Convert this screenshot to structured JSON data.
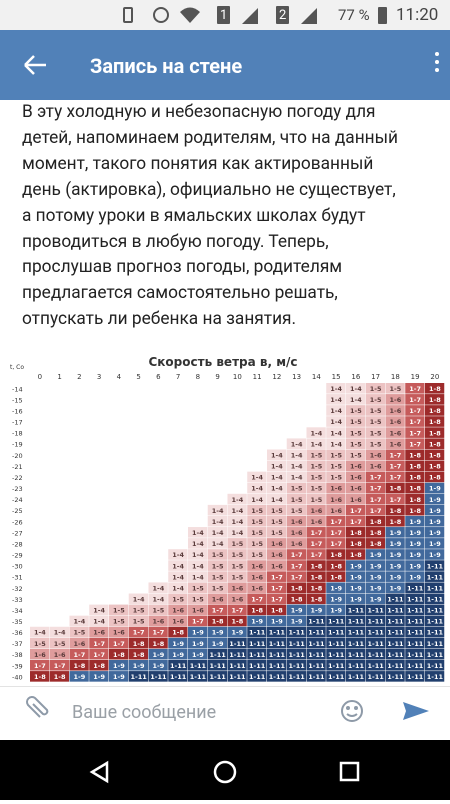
{
  "status_bar": {
    "sim1": "1",
    "sim2": "2",
    "battery": "77 %",
    "time": "11:20"
  },
  "header": {
    "title": "Запись на стене"
  },
  "post": {
    "lines": [
      "В эту холодную и небезопасную погоду для",
      "детей, напоминаем родителям, что на данный",
      "момент, такого понятия как актированный",
      "день (актировка), официально не существует,",
      "а потому уроки в ямальских школах будут",
      "проводиться в любую погоду. Теперь,",
      "прослушав прогноз погоды, родителям",
      "предлагается самостоятельно решать,",
      "отпускать ли ребенка на занятия."
    ]
  },
  "table": {
    "title": "Скорость ветра в, м/с",
    "row_header": "t, Co",
    "columns": [
      0,
      1,
      2,
      3,
      4,
      5,
      6,
      7,
      8,
      9,
      10,
      11,
      12,
      13,
      14,
      15,
      16,
      17,
      18,
      19,
      20
    ],
    "cell_colors": {
      "1-4": "#f4dede",
      "1-5": "#ecc3c3",
      "1-6": "#df9c9c",
      "1-7": "#c65b5b",
      "1-8": "#9d2b2b",
      "1-9": "#41699c",
      "1-11": "#213f6e"
    },
    "dark_text_cells": [
      "1-4",
      "1-5",
      "1-6"
    ],
    "rows": [
      {
        "t": -14,
        "cells": [
          null,
          null,
          null,
          null,
          null,
          null,
          null,
          null,
          null,
          null,
          null,
          null,
          null,
          null,
          null,
          "1-4",
          "1-4",
          "1-5",
          "1-5",
          "1-7",
          "1-8"
        ]
      },
      {
        "t": -15,
        "cells": [
          null,
          null,
          null,
          null,
          null,
          null,
          null,
          null,
          null,
          null,
          null,
          null,
          null,
          null,
          null,
          "1-4",
          "1-4",
          "1-5",
          "1-6",
          "1-7",
          "1-8"
        ]
      },
      {
        "t": -16,
        "cells": [
          null,
          null,
          null,
          null,
          null,
          null,
          null,
          null,
          null,
          null,
          null,
          null,
          null,
          null,
          null,
          "1-4",
          "1-5",
          "1-5",
          "1-6",
          "1-7",
          "1-8"
        ]
      },
      {
        "t": -17,
        "cells": [
          null,
          null,
          null,
          null,
          null,
          null,
          null,
          null,
          null,
          null,
          null,
          null,
          null,
          null,
          null,
          "1-4",
          "1-5",
          "1-5",
          "1-6",
          "1-7",
          "1-8"
        ]
      },
      {
        "t": -18,
        "cells": [
          null,
          null,
          null,
          null,
          null,
          null,
          null,
          null,
          null,
          null,
          null,
          null,
          null,
          null,
          "1-4",
          "1-4",
          "1-5",
          "1-5",
          "1-6",
          "1-7",
          "1-8"
        ]
      },
      {
        "t": -19,
        "cells": [
          null,
          null,
          null,
          null,
          null,
          null,
          null,
          null,
          null,
          null,
          null,
          null,
          null,
          "1-4",
          "1-4",
          "1-4",
          "1-5",
          "1-5",
          "1-6",
          "1-7",
          "1-8"
        ]
      },
      {
        "t": -20,
        "cells": [
          null,
          null,
          null,
          null,
          null,
          null,
          null,
          null,
          null,
          null,
          null,
          null,
          "1-4",
          "1-4",
          "1-5",
          "1-5",
          "1-5",
          "1-6",
          "1-7",
          "1-8",
          "1-8"
        ]
      },
      {
        "t": -21,
        "cells": [
          null,
          null,
          null,
          null,
          null,
          null,
          null,
          null,
          null,
          null,
          null,
          null,
          "1-4",
          "1-4",
          "1-5",
          "1-5",
          "1-6",
          "1-6",
          "1-7",
          "1-8",
          "1-8"
        ]
      },
      {
        "t": -22,
        "cells": [
          null,
          null,
          null,
          null,
          null,
          null,
          null,
          null,
          null,
          null,
          null,
          "1-4",
          "1-4",
          "1-4",
          "1-5",
          "1-5",
          "1-6",
          "1-7",
          "1-7",
          "1-8",
          "1-8"
        ]
      },
      {
        "t": -23,
        "cells": [
          null,
          null,
          null,
          null,
          null,
          null,
          null,
          null,
          null,
          null,
          null,
          "1-4",
          "1-4",
          "1-5",
          "1-5",
          "1-6",
          "1-6",
          "1-7",
          "1-8",
          "1-8",
          "1-9"
        ]
      },
      {
        "t": -24,
        "cells": [
          null,
          null,
          null,
          null,
          null,
          null,
          null,
          null,
          null,
          null,
          "1-4",
          "1-4",
          "1-4",
          "1-5",
          "1-5",
          "1-6",
          "1-6",
          "1-7",
          "1-7",
          "1-8",
          "1-9"
        ]
      },
      {
        "t": -25,
        "cells": [
          null,
          null,
          null,
          null,
          null,
          null,
          null,
          null,
          null,
          "1-4",
          "1-4",
          "1-5",
          "1-5",
          "1-5",
          "1-6",
          "1-6",
          "1-7",
          "1-7",
          "1-8",
          "1-8",
          "1-9"
        ]
      },
      {
        "t": -26,
        "cells": [
          null,
          null,
          null,
          null,
          null,
          null,
          null,
          null,
          null,
          "1-4",
          "1-4",
          "1-5",
          "1-5",
          "1-6",
          "1-6",
          "1-7",
          "1-7",
          "1-8",
          "1-8",
          "1-9",
          "1-9"
        ]
      },
      {
        "t": -27,
        "cells": [
          null,
          null,
          null,
          null,
          null,
          null,
          null,
          null,
          "1-4",
          "1-4",
          "1-4",
          "1-5",
          "1-5",
          "1-6",
          "1-7",
          "1-7",
          "1-8",
          "1-8",
          "1-9",
          "1-9",
          "1-9"
        ]
      },
      {
        "t": -28,
        "cells": [
          null,
          null,
          null,
          null,
          null,
          null,
          null,
          null,
          "1-4",
          "1-4",
          "1-5",
          "1-5",
          "1-6",
          "1-6",
          "1-7",
          "1-7",
          "1-8",
          "1-8",
          "1-9",
          "1-9",
          "1-9"
        ]
      },
      {
        "t": -29,
        "cells": [
          null,
          null,
          null,
          null,
          null,
          null,
          null,
          "1-4",
          "1-4",
          "1-5",
          "1-5",
          "1-5",
          "1-6",
          "1-7",
          "1-7",
          "1-8",
          "1-8",
          "1-9",
          "1-9",
          "1-9",
          "1-9"
        ]
      },
      {
        "t": -30,
        "cells": [
          null,
          null,
          null,
          null,
          null,
          null,
          null,
          "1-4",
          "1-4",
          "1-5",
          "1-5",
          "1-6",
          "1-6",
          "1-7",
          "1-8",
          "1-8",
          "1-9",
          "1-9",
          "1-9",
          "1-9",
          "1-11"
        ]
      },
      {
        "t": -31,
        "cells": [
          null,
          null,
          null,
          null,
          null,
          null,
          null,
          "1-4",
          "1-4",
          "1-5",
          "1-5",
          "1-6",
          "1-7",
          "1-7",
          "1-8",
          "1-8",
          "1-9",
          "1-9",
          "1-9",
          "1-9",
          "1-11"
        ]
      },
      {
        "t": -32,
        "cells": [
          null,
          null,
          null,
          null,
          null,
          null,
          "1-4",
          "1-4",
          "1-5",
          "1-5",
          "1-6",
          "1-6",
          "1-7",
          "1-8",
          "1-8",
          "1-9",
          "1-9",
          "1-9",
          "1-9",
          "1-11",
          "1-11"
        ]
      },
      {
        "t": -33,
        "cells": [
          null,
          null,
          null,
          null,
          null,
          "1-4",
          "1-4",
          "1-5",
          "1-5",
          "1-6",
          "1-6",
          "1-7",
          "1-7",
          "1-8",
          "1-8",
          "1-9",
          "1-9",
          "1-9",
          "1-11",
          "1-11",
          "1-11"
        ]
      },
      {
        "t": -34,
        "cells": [
          null,
          null,
          null,
          "1-4",
          "1-5",
          "1-5",
          "1-5",
          "1-6",
          "1-6",
          "1-7",
          "1-7",
          "1-8",
          "1-8",
          "1-9",
          "1-9",
          "1-9",
          "1-11",
          "1-11",
          "1-11",
          "1-11",
          "1-11"
        ]
      },
      {
        "t": -35,
        "cells": [
          null,
          null,
          "1-4",
          "1-4",
          "1-5",
          "1-5",
          "1-6",
          "1-6",
          "1-7",
          "1-8",
          "1-8",
          "1-9",
          "1-9",
          "1-9",
          "1-11",
          "1-11",
          "1-11",
          "1-11",
          "1-11",
          "1-11",
          "1-11"
        ]
      },
      {
        "t": -36,
        "cells": [
          "1-4",
          "1-4",
          "1-5",
          "1-6",
          "1-6",
          "1-7",
          "1-7",
          "1-8",
          "1-9",
          "1-9",
          "1-9",
          "1-11",
          "1-11",
          "1-11",
          "1-11",
          "1-11",
          "1-11",
          "1-11",
          "1-11",
          "1-11",
          "1-11"
        ]
      },
      {
        "t": -37,
        "cells": [
          "1-5",
          "1-5",
          "1-6",
          "1-7",
          "1-7",
          "1-8",
          "1-8",
          "1-9",
          "1-9",
          "1-9",
          "1-11",
          "1-11",
          "1-11",
          "1-11",
          "1-11",
          "1-11",
          "1-11",
          "1-11",
          "1-11",
          "1-11",
          "1-11"
        ]
      },
      {
        "t": -38,
        "cells": [
          "1-6",
          "1-6",
          "1-7",
          "1-7",
          "1-8",
          "1-8",
          "1-9",
          "1-9",
          "1-9",
          "1-11",
          "1-11",
          "1-11",
          "1-11",
          "1-11",
          "1-11",
          "1-11",
          "1-11",
          "1-11",
          "1-11",
          "1-11",
          "1-11"
        ]
      },
      {
        "t": -39,
        "cells": [
          "1-7",
          "1-7",
          "1-8",
          "1-8",
          "1-9",
          "1-9",
          "1-9",
          "1-11",
          "1-11",
          "1-11",
          "1-11",
          "1-11",
          "1-11",
          "1-11",
          "1-11",
          "1-11",
          "1-11",
          "1-11",
          "1-11",
          "1-11",
          "1-11"
        ]
      },
      {
        "t": -40,
        "cells": [
          "1-8",
          "1-8",
          "1-9",
          "1-9",
          "1-9",
          "1-11",
          "1-11",
          "1-11",
          "1-11",
          "1-11",
          "1-11",
          "1-11",
          "1-11",
          "1-11",
          "1-11",
          "1-11",
          "1-11",
          "1-11",
          "1-11",
          "1-11",
          "1-11"
        ]
      }
    ]
  },
  "composer": {
    "placeholder": "Ваше сообщение"
  }
}
